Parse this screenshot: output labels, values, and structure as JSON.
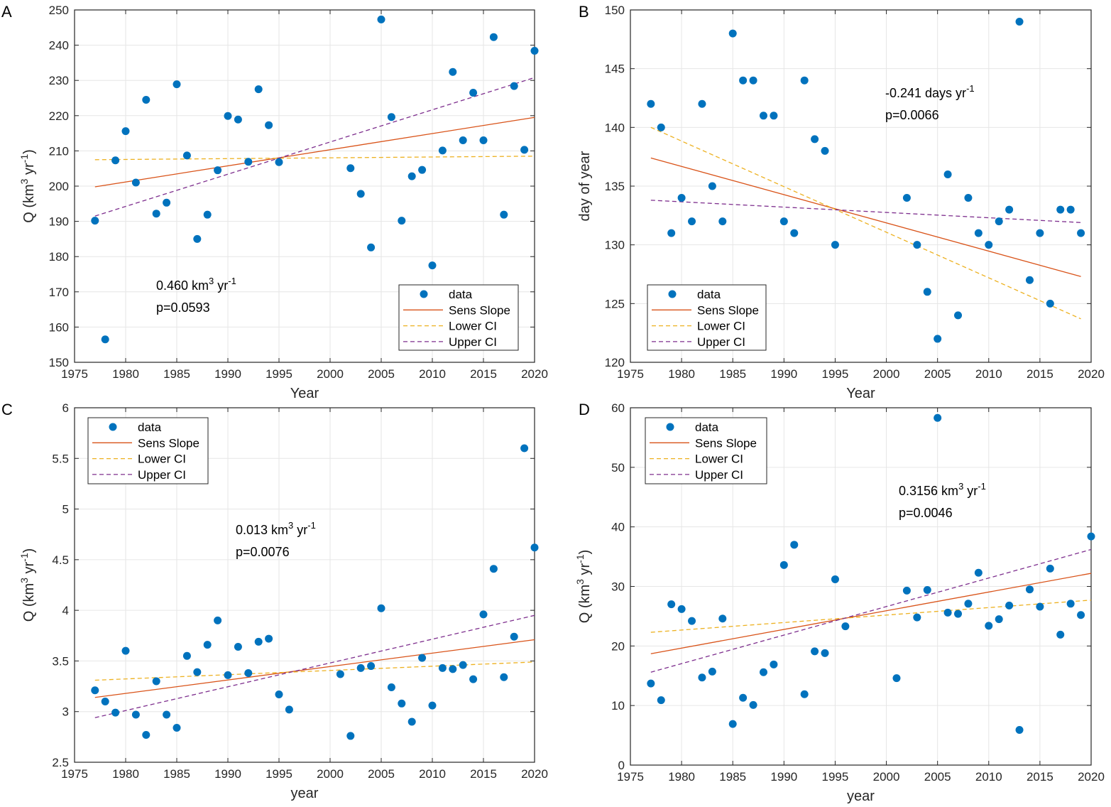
{
  "colors": {
    "data": "#0072BD",
    "sens": "#D95319",
    "lower": "#EDB120",
    "upper": "#7E2F8E",
    "grid": "#e6e6e6",
    "axis": "#262626"
  },
  "chart_data": [
    {
      "panel": "A",
      "type": "scatter",
      "xlabel": "Year",
      "ylabel": "Q (km3 yr-1)",
      "xlim": [
        1975,
        2020
      ],
      "ylim": [
        150,
        250
      ],
      "xticks": [
        1975,
        1980,
        1985,
        1990,
        1995,
        2000,
        2005,
        2010,
        2015,
        2020
      ],
      "yticks": [
        150,
        160,
        170,
        180,
        190,
        200,
        210,
        220,
        230,
        240,
        250
      ],
      "legend": {
        "position": "bottom-right",
        "entries": [
          "data",
          "Sens Slope",
          "Lower CI",
          "Upper CI"
        ]
      },
      "annotation": {
        "line1_prefix": "0.460 km",
        "line1_sup1": "3",
        "line1_mid": " yr",
        "line1_sup2": "-1",
        "line2": "p=0.0593",
        "position": "lower-left"
      },
      "series": [
        {
          "name": "data",
          "x": [
            1977,
            1978,
            1979,
            1980,
            1981,
            1982,
            1983,
            1984,
            1985,
            1986,
            1987,
            1988,
            1989,
            1990,
            1991,
            1992,
            1993,
            1994,
            1995,
            2002,
            2003,
            2004,
            2005,
            2006,
            2007,
            2008,
            2009,
            2010,
            2011,
            2012,
            2013,
            2014,
            2015,
            2016,
            2017,
            2018,
            2019,
            2020
          ],
          "y": [
            190.2,
            156.5,
            207.3,
            215.6,
            201.0,
            224.5,
            192.2,
            195.3,
            228.9,
            208.7,
            185.0,
            191.9,
            204.5,
            219.9,
            218.9,
            206.9,
            227.5,
            217.3,
            206.8,
            205.1,
            197.8,
            182.6,
            247.3,
            219.6,
            190.2,
            202.8,
            204.6,
            177.5,
            210.1,
            232.4,
            213.0,
            226.5,
            213.0,
            242.3,
            191.9,
            228.4,
            210.3,
            238.4
          ]
        },
        {
          "name": "Sens Slope",
          "x": [
            1977,
            2020
          ],
          "y": [
            199.8,
            219.5
          ]
        },
        {
          "name": "Lower CI",
          "x": [
            1977,
            2020
          ],
          "y": [
            207.5,
            208.5
          ]
        },
        {
          "name": "Upper CI",
          "x": [
            1977,
            2020
          ],
          "y": [
            191.5,
            230.8
          ]
        }
      ]
    },
    {
      "panel": "B",
      "type": "scatter",
      "xlabel": "Year",
      "ylabel": "day of year",
      "xlim": [
        1975,
        2020
      ],
      "ylim": [
        120,
        150
      ],
      "xticks": [
        1975,
        1980,
        1985,
        1990,
        1995,
        2000,
        2005,
        2010,
        2015,
        2020
      ],
      "yticks": [
        120,
        125,
        130,
        135,
        140,
        145,
        150
      ],
      "legend": {
        "position": "bottom-left",
        "entries": [
          "data",
          "Sens Slope",
          "Lower CI",
          "Upper CI"
        ]
      },
      "annotation": {
        "line1_prefix": "-0.241 days yr",
        "line1_sup1": "-1",
        "line1_mid": "",
        "line1_sup2": "",
        "line2": "p=0.0066",
        "position": "upper-right"
      },
      "series": [
        {
          "name": "data",
          "x": [
            1977,
            1978,
            1979,
            1980,
            1981,
            1982,
            1983,
            1984,
            1985,
            1986,
            1987,
            1988,
            1989,
            1990,
            1991,
            1992,
            1993,
            1994,
            1995,
            2002,
            2003,
            2004,
            2005,
            2006,
            2007,
            2008,
            2009,
            2010,
            2011,
            2012,
            2013,
            2014,
            2015,
            2016,
            2017,
            2018,
            2019
          ],
          "y": [
            142,
            140,
            131,
            134,
            132,
            142,
            135,
            132,
            148,
            144,
            144,
            141,
            141,
            132,
            131,
            144,
            139,
            138,
            130,
            134,
            130,
            126,
            122,
            136,
            124,
            134,
            131,
            130,
            132,
            133,
            149,
            127,
            131,
            125,
            133,
            133,
            131
          ]
        },
        {
          "name": "Sens Slope",
          "x": [
            1977,
            2019
          ],
          "y": [
            137.4,
            127.3
          ]
        },
        {
          "name": "Lower CI",
          "x": [
            1977,
            2019
          ],
          "y": [
            140.0,
            123.7
          ]
        },
        {
          "name": "Upper CI",
          "x": [
            1977,
            2019
          ],
          "y": [
            133.8,
            131.9
          ]
        }
      ]
    },
    {
      "panel": "C",
      "type": "scatter",
      "xlabel": "year",
      "ylabel": "Q (km3 yr-1)",
      "xlim": [
        1975,
        2020
      ],
      "ylim": [
        2.5,
        6
      ],
      "xticks": [
        1975,
        1980,
        1985,
        1990,
        1995,
        2000,
        2005,
        2010,
        2015,
        2020
      ],
      "yticks": [
        2.5,
        3,
        3.5,
        4,
        4.5,
        5,
        5.5,
        6
      ],
      "yticklabels": [
        "2.5",
        "3",
        "3.5",
        "4",
        "4.5",
        "5",
        "5.5",
        "6"
      ],
      "legend": {
        "position": "top-left",
        "entries": [
          "data",
          "Sens Slope",
          "Lower CI",
          "Upper CI"
        ]
      },
      "annotation": {
        "line1_prefix": "0.013 km",
        "line1_sup1": "3",
        "line1_mid": " yr",
        "line1_sup2": "-1",
        "line2": "p=0.0076",
        "position": "upper-middle"
      },
      "series": [
        {
          "name": "data",
          "x": [
            1977,
            1978,
            1979,
            1980,
            1981,
            1982,
            1983,
            1984,
            1985,
            1986,
            1987,
            1988,
            1989,
            1990,
            1991,
            1992,
            1993,
            1994,
            1995,
            1996,
            2001,
            2002,
            2003,
            2004,
            2005,
            2006,
            2007,
            2008,
            2009,
            2010,
            2011,
            2012,
            2013,
            2014,
            2015,
            2016,
            2017,
            2018,
            2019,
            2020
          ],
          "y": [
            3.21,
            3.1,
            2.99,
            3.6,
            2.97,
            2.77,
            3.3,
            2.97,
            2.84,
            3.55,
            3.39,
            3.66,
            3.9,
            3.36,
            3.64,
            3.38,
            3.69,
            3.72,
            3.17,
            3.02,
            3.37,
            2.76,
            3.43,
            3.45,
            4.02,
            3.24,
            3.08,
            2.9,
            3.53,
            3.06,
            3.43,
            3.42,
            3.46,
            3.32,
            3.96,
            4.41,
            3.34,
            3.74,
            5.6,
            4.62
          ]
        },
        {
          "name": "Sens Slope",
          "x": [
            1977,
            2020
          ],
          "y": [
            3.14,
            3.71
          ]
        },
        {
          "name": "Lower CI",
          "x": [
            1977,
            2020
          ],
          "y": [
            3.31,
            3.49
          ]
        },
        {
          "name": "Upper CI",
          "x": [
            1977,
            2020
          ],
          "y": [
            2.94,
            3.95
          ]
        }
      ]
    },
    {
      "panel": "D",
      "type": "scatter",
      "xlabel": "year",
      "ylabel": "Q (km3 yr-1)",
      "xlim": [
        1975,
        2020
      ],
      "ylim": [
        0,
        60
      ],
      "xticks": [
        1975,
        1980,
        1985,
        1990,
        1995,
        2000,
        2005,
        2010,
        2015,
        2020
      ],
      "yticks": [
        0,
        10,
        20,
        30,
        40,
        50,
        60
      ],
      "legend": {
        "position": "top-left",
        "entries": [
          "data",
          "Sens Slope",
          "Lower CI",
          "Upper CI"
        ]
      },
      "annotation": {
        "line1_prefix": "0.3156 km",
        "line1_sup1": "3",
        "line1_mid": " yr",
        "line1_sup2": "-1",
        "line2": "p=0.0046",
        "position": "upper-right"
      },
      "series": [
        {
          "name": "data",
          "x": [
            1977,
            1978,
            1979,
            1980,
            1981,
            1982,
            1983,
            1984,
            1985,
            1986,
            1987,
            1988,
            1989,
            1990,
            1991,
            1992,
            1993,
            1994,
            1995,
            1996,
            2001,
            2002,
            2003,
            2004,
            2005,
            2006,
            2007,
            2008,
            2009,
            2010,
            2011,
            2012,
            2013,
            2014,
            2015,
            2016,
            2017,
            2018,
            2019,
            2020
          ],
          "y": [
            13.7,
            10.9,
            27.0,
            26.2,
            24.2,
            14.7,
            15.7,
            24.6,
            6.9,
            11.3,
            10.1,
            15.6,
            16.9,
            33.6,
            37.0,
            11.9,
            19.1,
            18.8,
            31.2,
            23.3,
            14.6,
            29.3,
            24.8,
            29.4,
            58.3,
            25.6,
            25.4,
            27.1,
            32.3,
            23.4,
            24.5,
            26.8,
            5.9,
            29.5,
            26.6,
            33.0,
            21.9,
            27.1,
            25.2,
            38.4
          ]
        },
        {
          "name": "Sens Slope",
          "x": [
            1977,
            2020
          ],
          "y": [
            18.7,
            32.2
          ]
        },
        {
          "name": "Lower CI",
          "x": [
            1977,
            2020
          ],
          "y": [
            22.3,
            27.7
          ]
        },
        {
          "name": "Upper CI",
          "x": [
            1977,
            2020
          ],
          "y": [
            15.6,
            36.2
          ]
        }
      ]
    }
  ]
}
